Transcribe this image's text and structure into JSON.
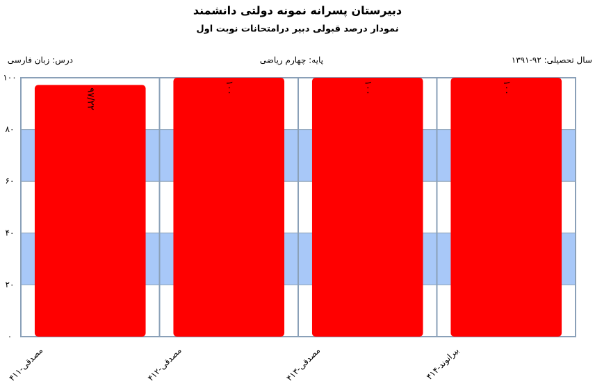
{
  "chart_data": {
    "type": "bar",
    "title": "دبیرستان پسرانه نمونه دولتی دانشمند",
    "subtitle": "نمودار درصد قبولی دبیر درامتحانات نوبت اول",
    "info": [
      "سال تحصیلی: ۹۲-۱۳۹۱",
      "پایه: چهارم ریاضی",
      "درس: زبان فارسی"
    ],
    "categories": [
      "مصدقی-۴۱۱",
      "مصدقی-۴۱۲",
      "مصدقی-۴۱۳",
      "بیرانوند-۴۱۴"
    ],
    "values": [
      97.22,
      100,
      100,
      100
    ],
    "value_labels": [
      "۹۷/۲۲",
      "۱۰۰",
      "۱۰۰",
      "۱۰۰"
    ],
    "color": "#ff0000",
    "band_color": "#a8c8f8",
    "ylim": [
      0,
      100
    ],
    "yticks": [
      {
        "value": 0,
        "label": "۰"
      },
      {
        "value": 20,
        "label": "۲۰"
      },
      {
        "value": 40,
        "label": "۴۰"
      },
      {
        "value": 60,
        "label": "۶۰"
      },
      {
        "value": 80,
        "label": "۸۰"
      },
      {
        "value": 100,
        "label": "۱۰۰"
      }
    ],
    "grid": true
  }
}
